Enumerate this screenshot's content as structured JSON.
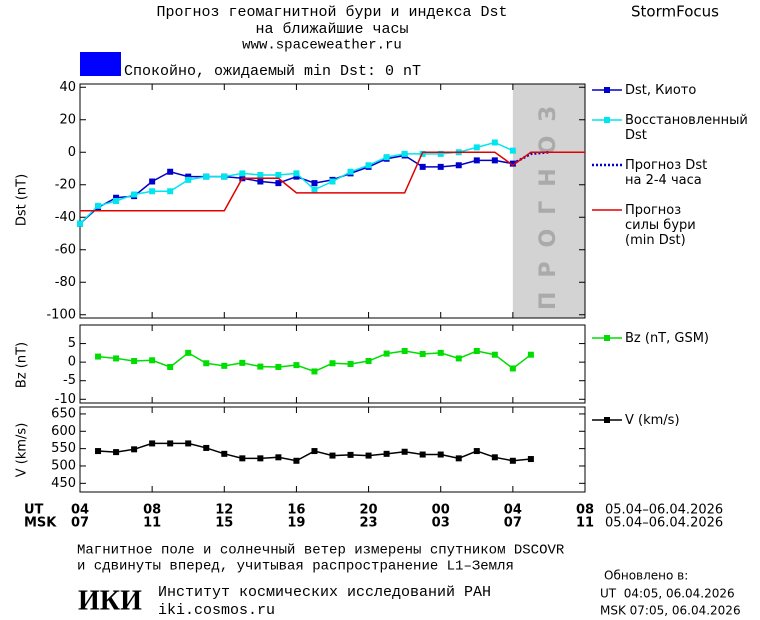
{
  "header": {
    "title_lines": [
      "Прогноз геомагнитной бури и индекса Dst",
      "на ближайшие часы",
      "www.spaceweather.ru"
    ],
    "brand": "StormFocus"
  },
  "status": {
    "text": "Спокойно, ожидаемый min Dst: 0 nT",
    "color": "#0000ff"
  },
  "chart_data": [
    {
      "type": "line",
      "ylabel": "Dst (nT)",
      "xlim": [
        0,
        28
      ],
      "ylim": [
        -102,
        42
      ],
      "yticks": [
        40,
        20,
        0,
        -20,
        -40,
        -60,
        -80,
        -100
      ],
      "xticks": [
        0,
        4,
        8,
        12,
        16,
        20,
        24,
        28
      ],
      "forecast_region": {
        "x": [
          24,
          28
        ],
        "label": "ПРОГНОЗ",
        "color": "#d3d3d3"
      },
      "series": [
        {
          "name": "Dst, Киото",
          "color": "#0000cc",
          "marker": true,
          "style": "solid",
          "x": [
            0,
            1,
            2,
            3,
            4,
            5,
            6,
            7,
            8,
            9,
            10,
            11,
            12,
            13,
            14,
            15,
            16,
            17,
            18,
            19,
            20,
            21,
            22,
            23,
            24
          ],
          "values": [
            -44,
            -34,
            -28,
            -27,
            -18,
            -12,
            -15,
            -15,
            -15,
            -16,
            -18,
            -19,
            -15,
            -19,
            -17,
            -13,
            -9,
            -4,
            -2,
            -9,
            -9,
            -8,
            -5,
            -5,
            -7
          ]
        },
        {
          "name": "Восстановленный\nDst",
          "color": "#00e5ee",
          "marker": true,
          "style": "solid",
          "x": [
            0,
            1,
            2,
            3,
            4,
            5,
            6,
            7,
            8,
            9,
            10,
            11,
            12,
            13,
            14,
            15,
            16,
            17,
            18,
            19,
            20,
            21,
            22,
            23,
            24
          ],
          "values": [
            -44,
            -33,
            -30,
            -26,
            -24,
            -24,
            -17,
            -15,
            -15,
            -13,
            -14,
            -14,
            -13,
            -23,
            -18,
            -12,
            -8,
            -3,
            -1,
            -1,
            -1,
            0,
            3,
            6,
            1
          ]
        },
        {
          "name": "Прогноз Dst\nна 2-4 часа",
          "color": "#0000cc",
          "marker": false,
          "style": "dotted",
          "x": [
            24,
            25,
            26
          ],
          "values": [
            -7,
            -1,
            0
          ]
        },
        {
          "name": "Прогноз\nсилы бури\n(min Dst)",
          "color": "#e00000",
          "marker": false,
          "style": "solid",
          "x": [
            0,
            8,
            9,
            11,
            12,
            18,
            19,
            23,
            24,
            25,
            28
          ],
          "values": [
            -36,
            -36,
            -16,
            -16,
            -25,
            -25,
            0,
            0,
            -8,
            0,
            0
          ]
        }
      ]
    },
    {
      "type": "line",
      "ylabel": "Bz (nT)",
      "xlim": [
        0,
        28
      ],
      "ylim": [
        -11,
        10
      ],
      "yticks": [
        5,
        0,
        -5,
        -10
      ],
      "xticks": [
        0,
        4,
        8,
        12,
        16,
        20,
        24,
        28
      ],
      "series": [
        {
          "name": "Bz (nT, GSM)",
          "color": "#00dd00",
          "marker": true,
          "style": "solid",
          "x": [
            1,
            2,
            3,
            4,
            5,
            6,
            7,
            8,
            9,
            10,
            11,
            12,
            13,
            14,
            15,
            16,
            17,
            18,
            19,
            20,
            21,
            22,
            23,
            24,
            25
          ],
          "values": [
            1.5,
            1,
            0.3,
            0.5,
            -1.3,
            2.5,
            -0.3,
            -1,
            -0.2,
            -1.2,
            -1.3,
            -0.8,
            -2.5,
            -0.3,
            -0.5,
            0.3,
            2.3,
            3,
            2.2,
            2.5,
            1,
            3,
            2,
            -1.7,
            2
          ]
        }
      ]
    },
    {
      "type": "line",
      "ylabel": "V (km/s)",
      "xlim": [
        0,
        28
      ],
      "ylim": [
        425,
        670
      ],
      "yticks": [
        650,
        600,
        550,
        500,
        450
      ],
      "xlabel": "UT",
      "x2label": "MSK",
      "xticks": [
        {
          "value": 0,
          "label": "04"
        },
        {
          "value": 4,
          "label": "08"
        },
        {
          "value": 8,
          "label": "12"
        },
        {
          "value": 12,
          "label": "16"
        },
        {
          "value": 16,
          "label": "20"
        },
        {
          "value": 20,
          "label": "00"
        },
        {
          "value": 24,
          "label": "04"
        },
        {
          "value": 28,
          "label": "08"
        }
      ],
      "x2ticks": [
        {
          "value": 0,
          "label": "07"
        },
        {
          "value": 4,
          "label": "11"
        },
        {
          "value": 8,
          "label": "15"
        },
        {
          "value": 12,
          "label": "19"
        },
        {
          "value": 16,
          "label": "23"
        },
        {
          "value": 20,
          "label": "03"
        },
        {
          "value": 24,
          "label": "07"
        },
        {
          "value": 28,
          "label": "11"
        }
      ],
      "date_labels": [
        "05.04–06.04.2026",
        "05.04–06.04.2026"
      ],
      "series": [
        {
          "name": "V (km/s)",
          "color": "#000000",
          "marker": true,
          "style": "solid",
          "x": [
            1,
            2,
            3,
            4,
            5,
            6,
            7,
            8,
            9,
            10,
            11,
            12,
            13,
            14,
            15,
            16,
            17,
            18,
            19,
            20,
            21,
            22,
            23,
            24,
            25
          ],
          "values": [
            543,
            540,
            548,
            565,
            565,
            565,
            552,
            535,
            522,
            522,
            525,
            515,
            543,
            530,
            532,
            530,
            535,
            541,
            533,
            533,
            522,
            543,
            525,
            515,
            520
          ]
        }
      ]
    }
  ],
  "footer": {
    "note_lines": [
      "Магнитное поле и солнечный ветер измерены спутником DSCOVR",
      "и сдвинуты вперед, учитывая распространение L1–Земля"
    ],
    "logo": "ИКИ",
    "institute": "Институт космических исследований РАН",
    "url": "iki.cosmos.ru",
    "updated_title": "Обновлено в:",
    "updated_lines": [
      "UT  04:05, 06.04.2026",
      "MSK 07:05, 06.04.2026"
    ]
  }
}
